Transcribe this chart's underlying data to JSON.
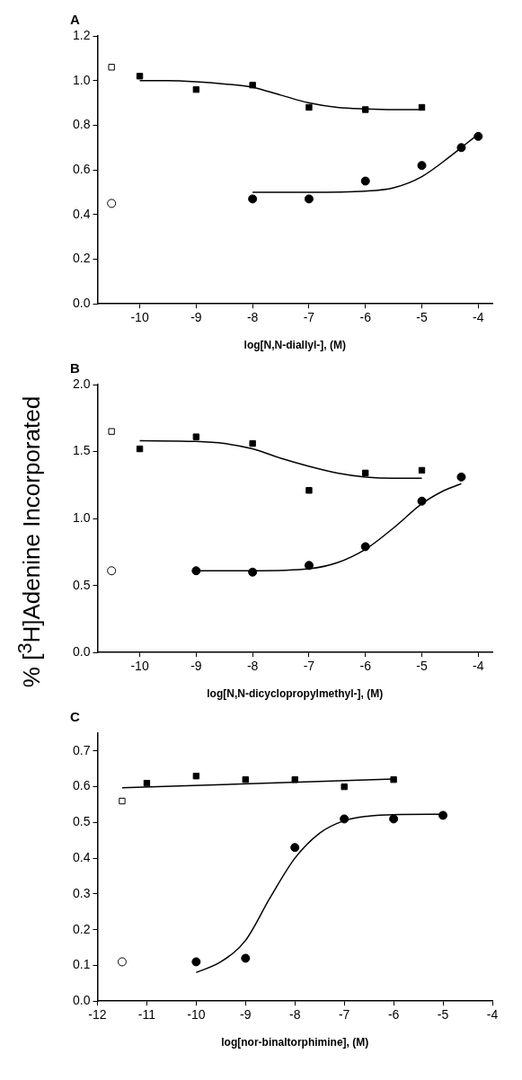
{
  "chart_data": [
    {
      "type": "scatter",
      "title": "A",
      "xlabel": "log[N,N-diallyl-], (M)",
      "xlim": [
        -10.75,
        -3.75
      ],
      "xticks": [
        -10,
        -9,
        -8,
        -7,
        -6,
        -5,
        -4
      ],
      "ylim": [
        0,
        1.2
      ],
      "yticks": [
        {
          "value": 0,
          "label": "0.0"
        },
        0.2,
        0.4,
        0.6,
        0.8,
        {
          "value": 1,
          "label": "1.0"
        },
        1.2
      ],
      "grid": false,
      "legend": false,
      "series": [
        {
          "type": "scatter",
          "marker": "square",
          "color": "#000000",
          "x": [
            -10,
            -9,
            -8,
            -7,
            -6,
            -5
          ],
          "values": [
            1.02,
            0.96,
            0.98,
            0.88,
            0.87,
            0.88
          ]
        },
        {
          "type": "scatter",
          "marker": "circle",
          "color": "#000000",
          "x": [
            -8,
            -7,
            -6,
            -5,
            -4.3,
            -4
          ],
          "values": [
            0.47,
            0.47,
            0.55,
            0.62,
            0.7,
            0.75
          ]
        },
        {
          "type": "scatter",
          "marker": "square",
          "color": "#ffffff",
          "x": [
            -10.5
          ],
          "values": [
            1.06
          ]
        },
        {
          "type": "scatter",
          "marker": "circle",
          "color": "#ffffff",
          "x": [
            -10.5
          ],
          "values": [
            0.45
          ]
        },
        {
          "type": "line",
          "marker": "none",
          "color": "#000000",
          "x": [
            -10,
            -9.5,
            -9,
            -8.5,
            -8,
            -7.5,
            -7,
            -6.5,
            -6,
            -5.5,
            -5
          ],
          "values": [
            1.0,
            1.0,
            0.995,
            0.985,
            0.97,
            0.935,
            0.9,
            0.88,
            0.873,
            0.87,
            0.87
          ]
        },
        {
          "type": "line",
          "marker": "none",
          "color": "#000000",
          "x": [
            -8,
            -7,
            -6,
            -5.5,
            -5,
            -4.5,
            -4.2,
            -4
          ],
          "values": [
            0.5,
            0.5,
            0.505,
            0.52,
            0.57,
            0.66,
            0.72,
            0.76
          ]
        }
      ]
    },
    {
      "type": "scatter",
      "title": "B",
      "xlabel": "log[N,N-dicyclopropylmethyl-], (M)",
      "ylabel": "% [$^{3}$H]Adenine Incorporated",
      "xlim": [
        -10.75,
        -3.75
      ],
      "xticks": [
        -10,
        -9,
        -8,
        -7,
        -6,
        -5,
        -4
      ],
      "ylim": [
        0,
        2.0
      ],
      "yticks": [
        {
          "value": 0,
          "label": "0.0"
        },
        0.5,
        {
          "value": 1,
          "label": "1.0"
        },
        1.5,
        {
          "value": 2,
          "label": "2.0"
        }
      ],
      "grid": false,
      "legend": false,
      "series": [
        {
          "type": "scatter",
          "marker": "square",
          "color": "#000000",
          "x": [
            -10,
            -9,
            -8,
            -7,
            -6,
            -5
          ],
          "values": [
            1.52,
            1.61,
            1.56,
            1.21,
            1.34,
            1.36
          ]
        },
        {
          "type": "scatter",
          "marker": "circle",
          "color": "#000000",
          "x": [
            -9,
            -8,
            -7,
            -6,
            -5,
            -4.3
          ],
          "values": [
            0.61,
            0.6,
            0.65,
            0.79,
            1.13,
            1.31
          ]
        },
        {
          "type": "scatter",
          "marker": "square",
          "color": "#ffffff",
          "x": [
            -10.5
          ],
          "values": [
            1.65
          ]
        },
        {
          "type": "scatter",
          "marker": "circle",
          "color": "#ffffff",
          "x": [
            -10.5
          ],
          "values": [
            0.61
          ]
        },
        {
          "type": "line",
          "marker": "none",
          "color": "#000000",
          "x": [
            -10,
            -9,
            -8.5,
            -8,
            -7.5,
            -7,
            -6.5,
            -6,
            -5.5,
            -5
          ],
          "values": [
            1.58,
            1.575,
            1.56,
            1.52,
            1.45,
            1.39,
            1.34,
            1.31,
            1.3,
            1.3
          ]
        },
        {
          "type": "line",
          "marker": "none",
          "color": "#000000",
          "x": [
            -9,
            -8,
            -7,
            -6.5,
            -6,
            -5.5,
            -5,
            -4.6,
            -4.3
          ],
          "values": [
            0.61,
            0.61,
            0.625,
            0.67,
            0.77,
            0.93,
            1.11,
            1.21,
            1.26
          ]
        }
      ]
    },
    {
      "type": "scatter",
      "title": "C",
      "xlabel": "log[nor-binaltorphimine], (M)",
      "xlim": [
        -12,
        -4
      ],
      "xticks": [
        -12,
        -11,
        -10,
        -9,
        -8,
        -7,
        -6,
        -5,
        -4
      ],
      "ylim": [
        0,
        0.75
      ],
      "yticks": [
        {
          "value": 0,
          "label": "0.0"
        },
        0.1,
        0.2,
        0.3,
        0.4,
        0.5,
        0.6,
        0.7
      ],
      "grid": false,
      "legend": false,
      "series": [
        {
          "type": "scatter",
          "marker": "square",
          "color": "#000000",
          "x": [
            -11,
            -10,
            -9,
            -8,
            -7,
            -6
          ],
          "values": [
            0.61,
            0.63,
            0.62,
            0.62,
            0.6,
            0.62
          ]
        },
        {
          "type": "scatter",
          "marker": "circle",
          "color": "#000000",
          "x": [
            -10,
            -9,
            -8,
            -7,
            -6,
            -5
          ],
          "values": [
            0.11,
            0.12,
            0.43,
            0.51,
            0.51,
            0.52
          ]
        },
        {
          "type": "scatter",
          "marker": "square",
          "color": "#ffffff",
          "x": [
            -11.5
          ],
          "values": [
            0.56
          ]
        },
        {
          "type": "scatter",
          "marker": "circle",
          "color": "#ffffff",
          "x": [
            -11.5
          ],
          "values": [
            0.11
          ]
        },
        {
          "type": "line",
          "marker": "none",
          "color": "#000000",
          "x": [
            -11.5,
            -6
          ],
          "values": [
            0.597,
            0.622
          ]
        },
        {
          "type": "line",
          "marker": "none",
          "color": "#000000",
          "x": [
            -10,
            -9.5,
            -9,
            -8.5,
            -8,
            -7.5,
            -7,
            -6.5,
            -6,
            -5
          ],
          "values": [
            0.08,
            0.11,
            0.17,
            0.29,
            0.4,
            0.47,
            0.505,
            0.518,
            0.522,
            0.523
          ]
        }
      ]
    }
  ]
}
